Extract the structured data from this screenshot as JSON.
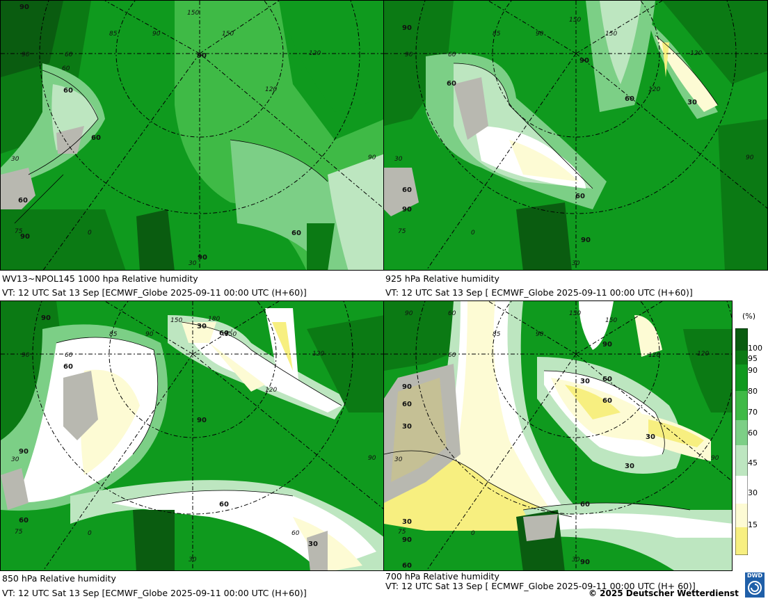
{
  "panels": [
    {
      "id": "p1000",
      "title": "WV13~NPOL145 1000 hpa Relative humidity",
      "valid": "VT: 12 UTC Sat  13 Sep [ECMWF_Globe 2025-09-11 00:00 UTC  (H+60)]",
      "labels": [
        "90",
        "60",
        "60",
        "60",
        "90",
        "90",
        "60",
        "90"
      ],
      "degrees": [
        "150",
        "120",
        "90",
        "85",
        "150",
        "120",
        "90",
        "60",
        "30",
        "75",
        "0",
        "30",
        "90",
        "60"
      ]
    },
    {
      "id": "p925",
      "title": "925 hPa Relative humidity",
      "valid": "VT: 12 UTC Sat  13 Sep [ ECMWF_Globe 2025-09-11 00:00 UTC  (H+60)]",
      "labels": [
        "90",
        "90",
        "60",
        "60",
        "30",
        "60",
        "60",
        "90",
        "90"
      ],
      "degrees": [
        "150",
        "120",
        "90",
        "85",
        "150",
        "120",
        "90",
        "60",
        "30",
        "75",
        "0",
        "30",
        "90"
      ]
    },
    {
      "id": "p850",
      "title": "850 hPa  Relative humidity",
      "valid": "VT: 12 UTC Sat  13 Sep [ECMWF_Globe 2025-09-11 00:00 UTC  (H+60)]",
      "labels": [
        "90",
        "60",
        "30",
        "60",
        "90",
        "90",
        "60",
        "60",
        "30"
      ],
      "degrees": [
        "150",
        "120",
        "90",
        "85",
        "180",
        "150",
        "120",
        "90",
        "60",
        "30",
        "75",
        "0",
        "30",
        "90",
        "60"
      ]
    },
    {
      "id": "p700",
      "title": "700 hPa Relative humidity",
      "valid": "VT: 12 UTC Sat  13 Sep [ ECMWF_Globe 2025-09-11 00:00 UTC  (H+ 60)]",
      "labels": [
        "90",
        "60",
        "30",
        "30",
        "60",
        "30",
        "90",
        "60",
        "30",
        "90",
        "60",
        "90",
        "60",
        "30"
      ],
      "degrees": [
        "150",
        "120",
        "90",
        "85",
        "150",
        "120",
        "90",
        "60",
        "30",
        "75",
        "0",
        "30",
        "90",
        "60"
      ]
    }
  ],
  "legend": {
    "unit": "(%)",
    "ticks": [
      "100",
      "95",
      "90",
      "80",
      "70",
      "60",
      "45",
      "30",
      "15"
    ],
    "colors": {
      "c100": "#0a5c10",
      "c95": "#0b7a14",
      "c90": "#0f9a1e",
      "c80": "#3fba46",
      "c70": "#7ccf86",
      "c60": "#bde6c0",
      "c45": "#ffffff",
      "c30": "#fdfbd4",
      "c15": "#f7ef80",
      "c0": "#f1e34a",
      "land": "#b8b8b0"
    }
  },
  "copyright": "© 2025 Deutscher Wetterdienst",
  "logo": "DWD"
}
